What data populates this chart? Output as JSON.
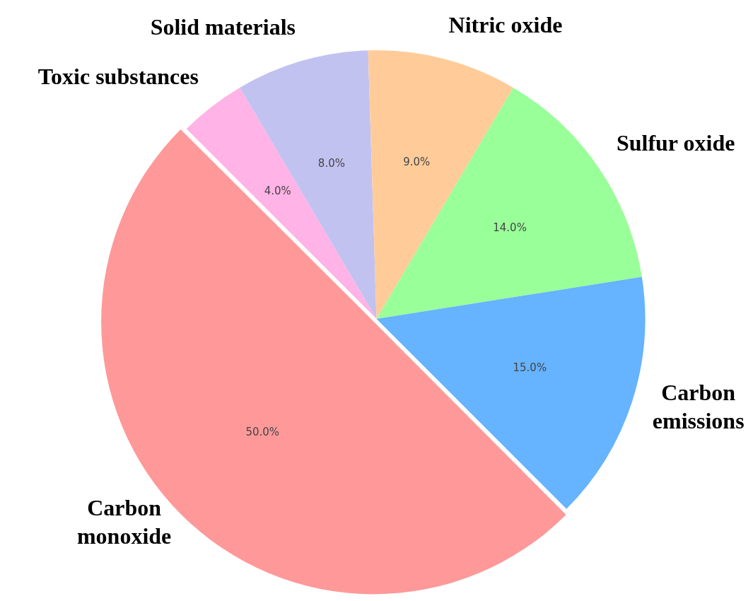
{
  "chart_data": {
    "type": "pie",
    "categories": [
      "Toxic substances",
      "Solid materials",
      "Nitric oxide",
      "Sulfur oxide",
      "Carbon emissions",
      "Carbon monoxide"
    ],
    "values": [
      4,
      8,
      9,
      14,
      15,
      50
    ],
    "colors": [
      "#ffb3e6",
      "#c2c2f0",
      "#ffcc99",
      "#99ff99",
      "#66b3ff",
      "#ff9999"
    ],
    "value_labels": [
      "4.0%",
      "8.0%",
      "9.0%",
      "14.0%",
      "15.0%",
      "50.0%"
    ],
    "legend": false
  }
}
